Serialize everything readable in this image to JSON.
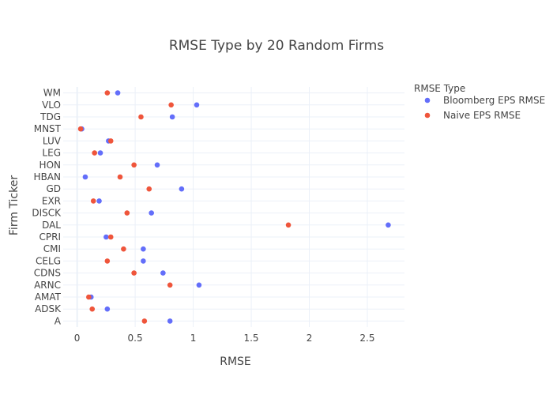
{
  "chart_data": {
    "type": "scatter",
    "title": "RMSE Type by 20 Random Firms",
    "xlabel": "RMSE",
    "ylabel": "Firm Ticker",
    "xlim": [
      -0.12,
      2.82
    ],
    "xticks": [
      0,
      0.5,
      1,
      1.5,
      2,
      2.5
    ],
    "xtick_labels": [
      "0",
      "0.5",
      "1",
      "1.5",
      "2",
      "2.5"
    ],
    "categories": [
      "A",
      "ADSK",
      "AMAT",
      "ARNC",
      "CDNS",
      "CELG",
      "CMI",
      "CPRI",
      "DAL",
      "DISCK",
      "EXR",
      "GD",
      "HBAN",
      "HON",
      "LEG",
      "LUV",
      "MNST",
      "TDG",
      "VLO",
      "WM"
    ],
    "grid": true,
    "legend": {
      "title": "RMSE Type",
      "placement": "right"
    },
    "series": [
      {
        "name": "Bloomberg EPS RMSE",
        "color": "#636efa",
        "values": [
          0.8,
          0.26,
          0.12,
          1.05,
          0.74,
          0.57,
          0.57,
          0.25,
          2.68,
          0.64,
          0.19,
          0.9,
          0.07,
          0.69,
          0.2,
          0.27,
          0.04,
          0.82,
          1.03,
          0.35
        ]
      },
      {
        "name": "Naive EPS RMSE",
        "color": "#ef553b",
        "values": [
          0.58,
          0.13,
          0.1,
          0.8,
          0.49,
          0.26,
          0.4,
          0.29,
          1.82,
          0.43,
          0.14,
          0.62,
          0.37,
          0.49,
          0.15,
          0.29,
          0.03,
          0.55,
          0.81,
          0.26
        ]
      }
    ]
  }
}
